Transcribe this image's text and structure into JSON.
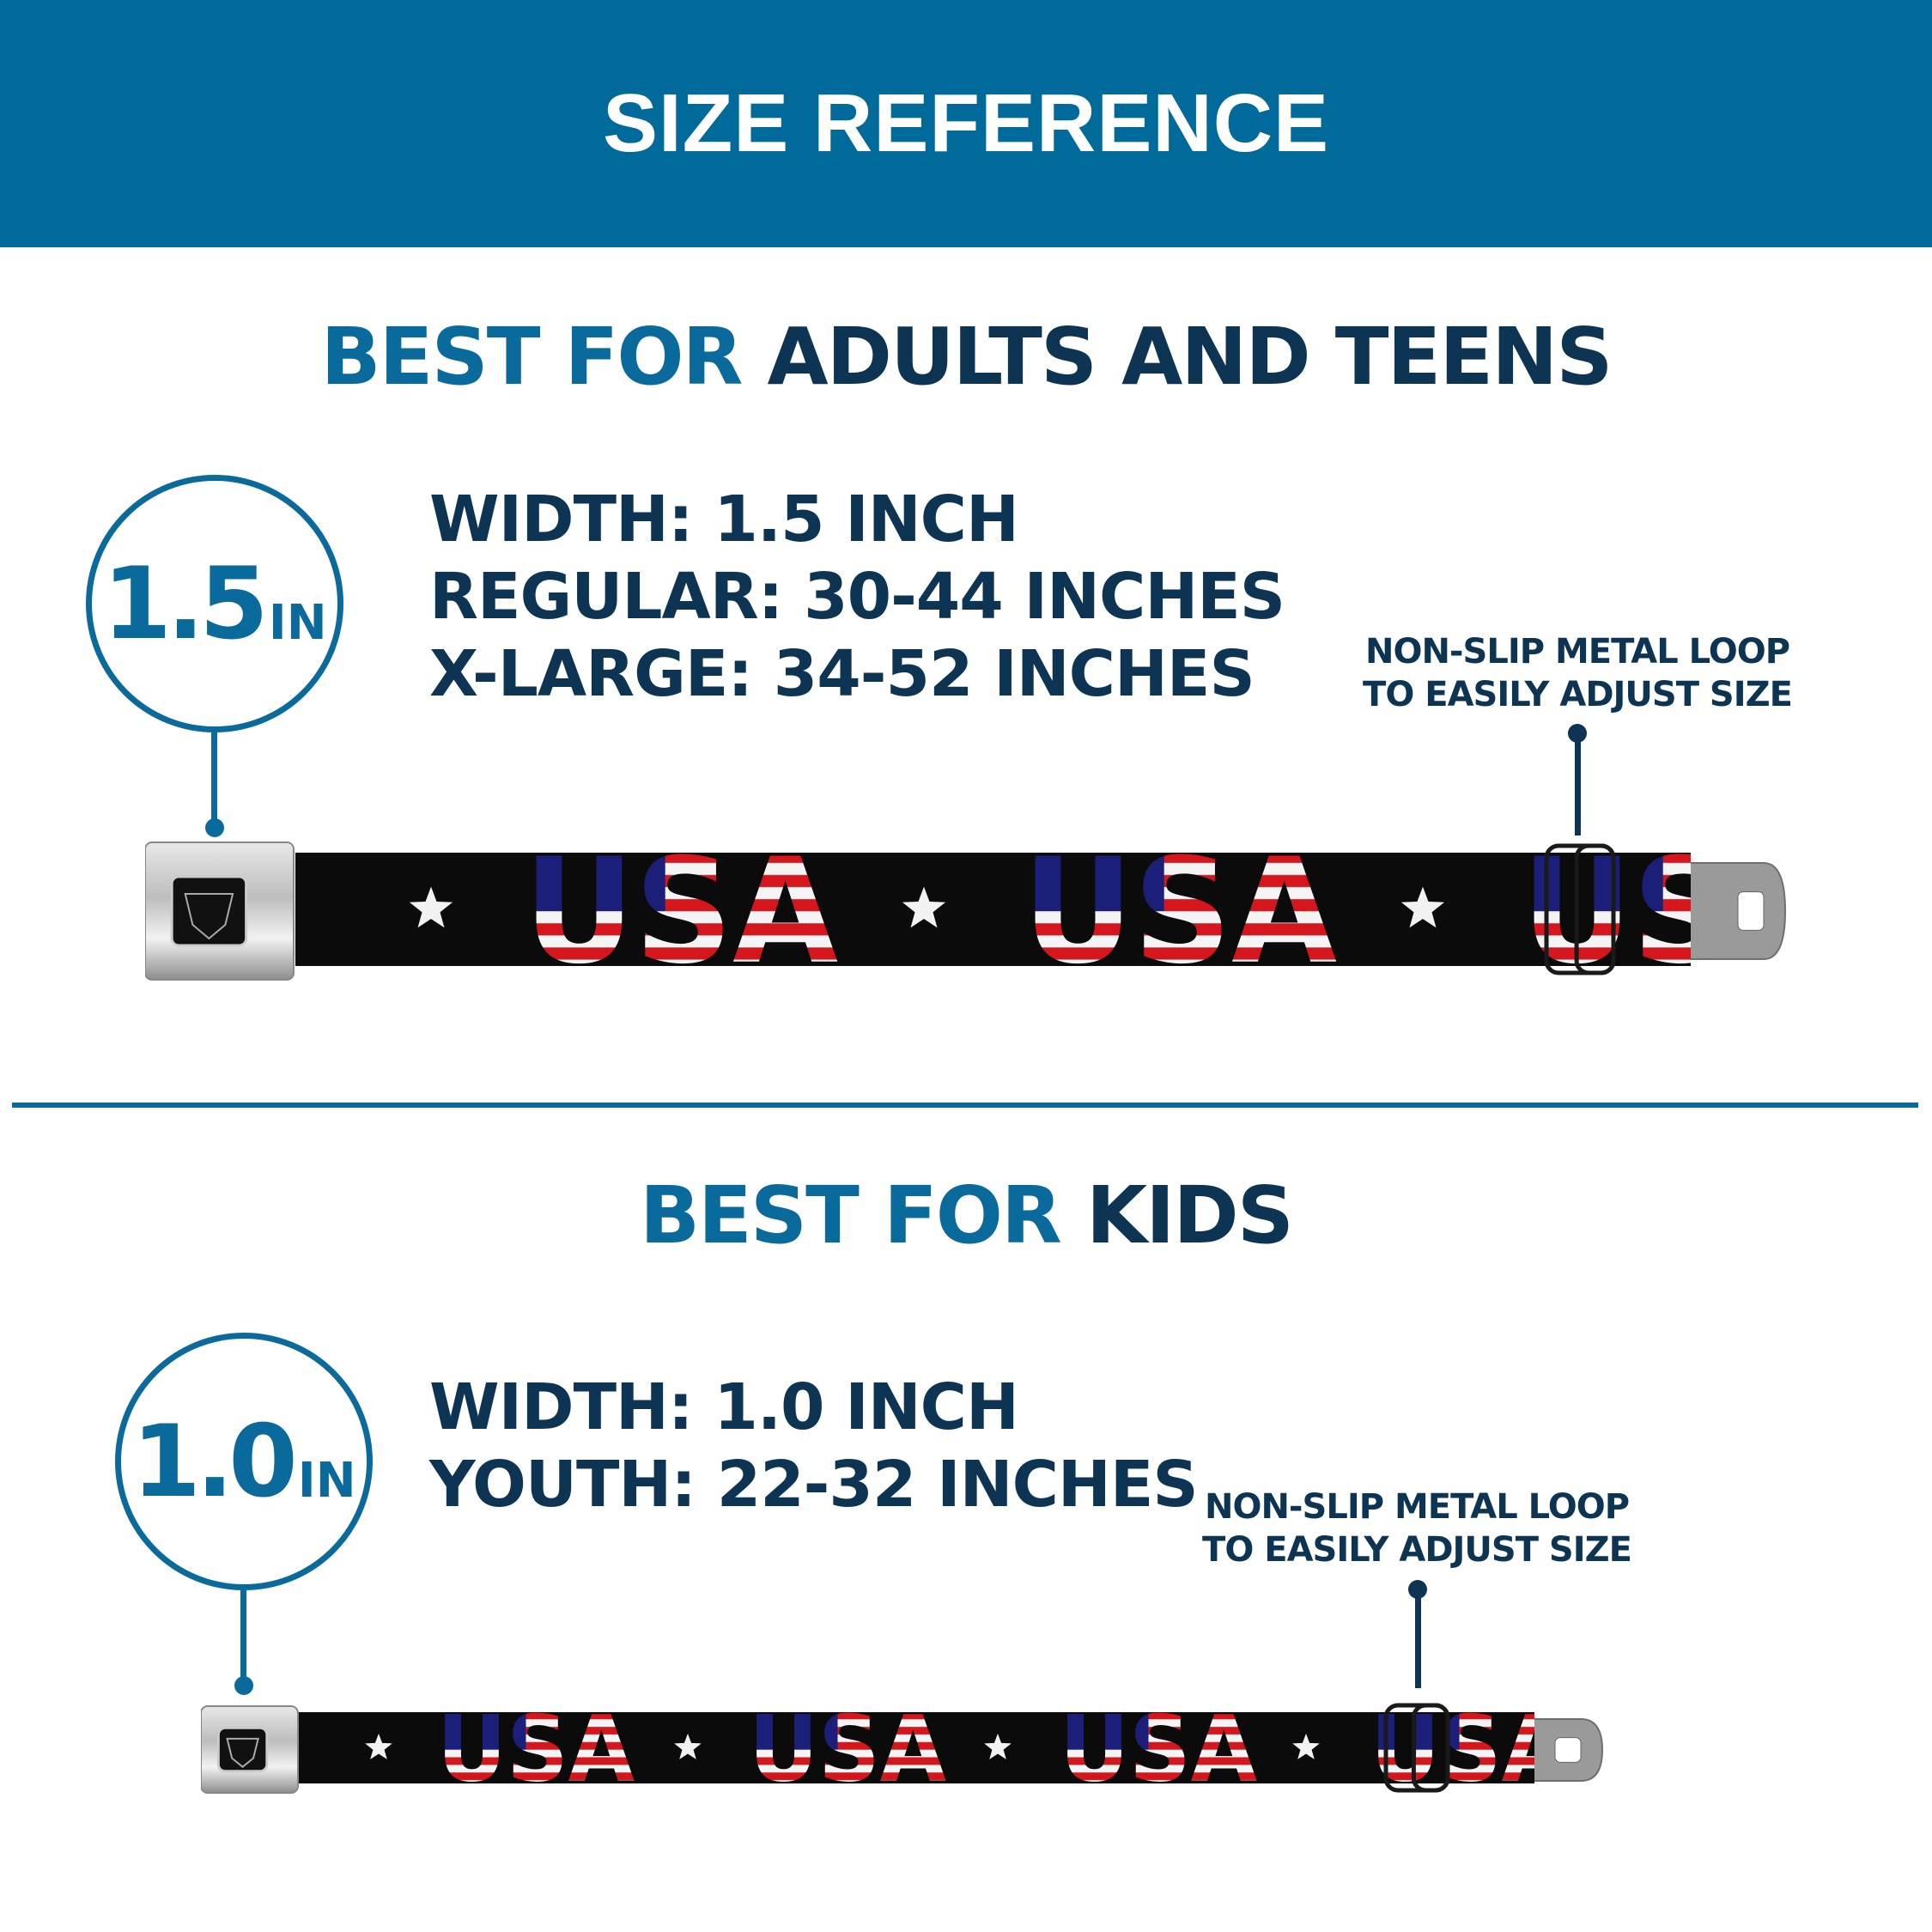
{
  "header": {
    "title": "SIZE REFERENCE"
  },
  "adults": {
    "heading_accent": "BEST FOR",
    "heading_main": "ADULTS AND TEENS",
    "badge_number": "1.5",
    "badge_unit": "IN",
    "specs": [
      "WIDTH: 1.5 INCH",
      "REGULAR: 30-44 INCHES",
      "X-LARGE: 34-52 INCHES"
    ],
    "note_lines": [
      "NON-SLIP METAL LOOP",
      "TO EASILY ADJUST SIZE"
    ]
  },
  "kids": {
    "heading_accent": "BEST FOR",
    "heading_main": "KIDS",
    "badge_number": "1.0",
    "badge_unit": "IN",
    "specs": [
      "WIDTH: 1.0 INCH",
      "YOUTH: 22-32 INCHES"
    ],
    "note_lines": [
      "NON-SLIP METAL LOOP",
      "TO EASILY ADJUST SIZE"
    ]
  },
  "belt_print": {
    "text": "USA",
    "logo": "BD"
  },
  "colors": {
    "brand_blue": "#006a9a",
    "accent_blue": "#0a6a9c",
    "navy": "#0d3553",
    "flag_red": "#d5161c",
    "flag_blue": "#1c1f7a",
    "strap": "#0b0b0b"
  }
}
